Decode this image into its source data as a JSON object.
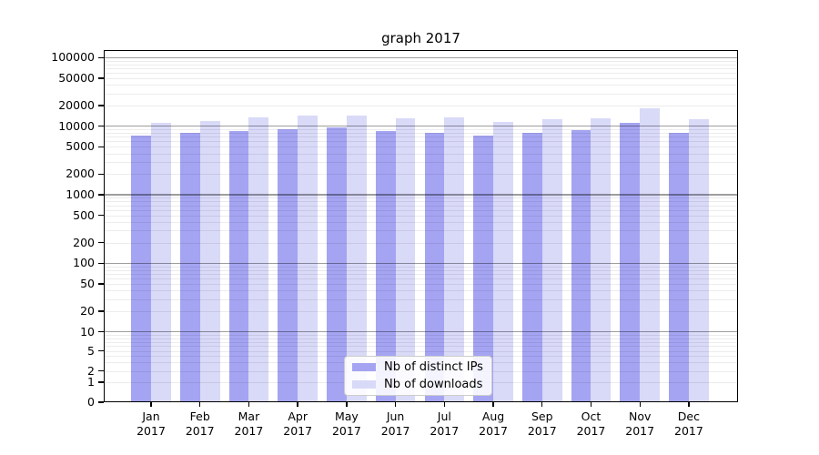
{
  "title": "graph 2017",
  "chart_data": {
    "type": "bar",
    "title": "graph 2017",
    "categories": [
      "Jan",
      "Feb",
      "Mar",
      "Apr",
      "May",
      "Jun",
      "Jul",
      "Aug",
      "Sep",
      "Oct",
      "Nov",
      "Dec"
    ],
    "category_year": "2017",
    "series": [
      {
        "name": "Nb of distinct IPs",
        "color": "#a4a4f2",
        "values": [
          7200,
          8000,
          8600,
          9100,
          9500,
          8400,
          8000,
          7300,
          7900,
          8700,
          11300,
          8100
        ]
      },
      {
        "name": "Nb of downloads",
        "color": "#d9d9f8",
        "values": [
          11200,
          11700,
          13500,
          14300,
          14200,
          13000,
          13300,
          11600,
          12600,
          13000,
          18000,
          12500
        ]
      }
    ],
    "y_scale": "symlog",
    "y_ticks": [
      0,
      1,
      2,
      5,
      10,
      20,
      50,
      100,
      200,
      500,
      1000,
      2000,
      5000,
      10000,
      20000,
      50000,
      100000
    ],
    "ylim": [
      0,
      120000
    ],
    "xlabel": "",
    "ylabel": "",
    "grid": true,
    "legend": {
      "position": "lower-center",
      "labels": [
        "Nb of distinct IPs",
        "Nb of downloads"
      ]
    }
  },
  "colors": {
    "bar_distinct_ips": "#a4a4f2",
    "bar_downloads": "#d9d9f8",
    "grid_major": "#9e9e9e",
    "grid_minor": "#ededed",
    "spine": "#000000",
    "background": "#ffffff"
  }
}
